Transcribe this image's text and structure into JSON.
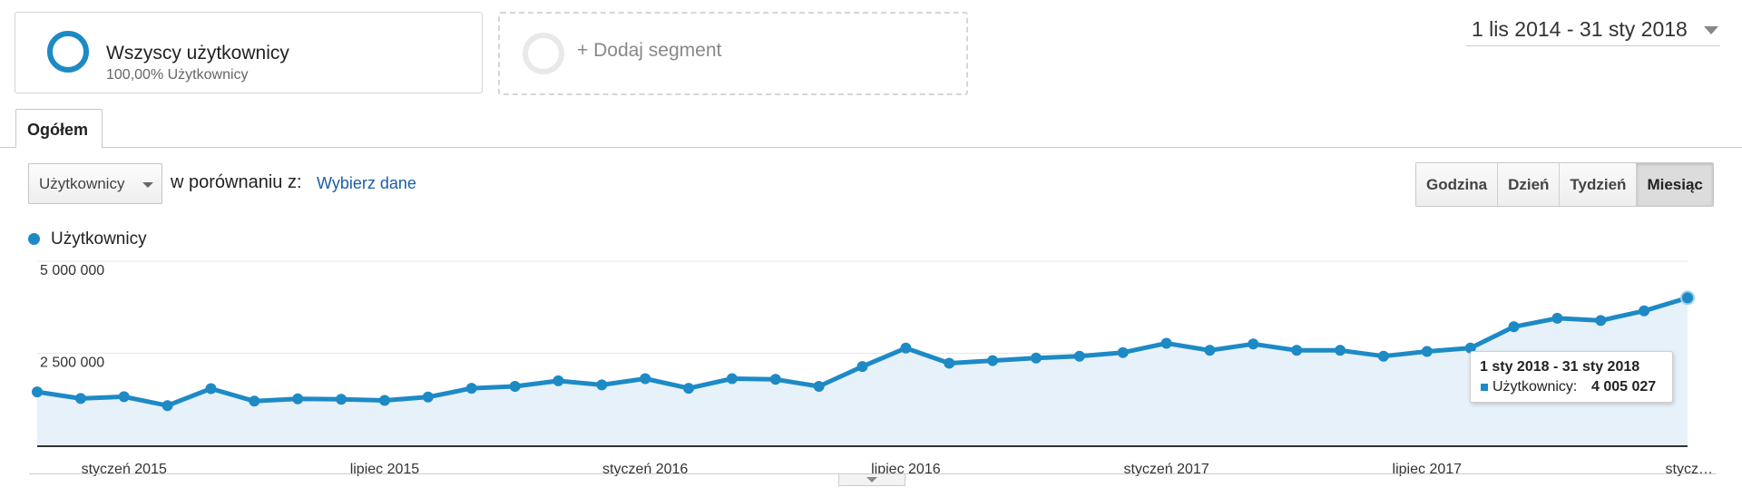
{
  "segments": {
    "active": {
      "name": "Wszyscy użytkownicy",
      "subtitle": "100,00% Użytkownicy"
    },
    "add_label": "+ Dodaj segment"
  },
  "date_range": "1 lis 2014 - 31 sty 2018",
  "tabs": [
    {
      "label": "Ogółem"
    }
  ],
  "controls": {
    "metric_select": "Użytkownicy",
    "compare_text": "w porównaniu z:",
    "compare_link": "Wybierz dane",
    "granularity": [
      {
        "label": "Godzina",
        "active": false
      },
      {
        "label": "Dzień",
        "active": false
      },
      {
        "label": "Tydzień",
        "active": false
      },
      {
        "label": "Miesiąc",
        "active": true
      }
    ]
  },
  "colors": {
    "series": "#1d8ac6",
    "area": "#e6f1f9",
    "ring_empty": "#e9e9e9",
    "link": "#1a5ea8"
  },
  "chart_data": {
    "type": "area",
    "legend": "Użytkownicy",
    "series": [
      {
        "name": "Użytkownicy",
        "values": [
          1450000,
          1270000,
          1320000,
          1080000,
          1540000,
          1200000,
          1260000,
          1250000,
          1220000,
          1310000,
          1550000,
          1600000,
          1750000,
          1640000,
          1810000,
          1550000,
          1810000,
          1790000,
          1600000,
          2140000,
          2640000,
          2230000,
          2300000,
          2370000,
          2420000,
          2520000,
          2770000,
          2580000,
          2750000,
          2580000,
          2580000,
          2420000,
          2550000,
          2640000,
          3220000,
          3450000,
          3390000,
          3650000,
          4005027
        ]
      }
    ],
    "y_ticks": [
      "5 000 000",
      "2 500 000"
    ],
    "y_tick_values": [
      5000000,
      2500000
    ],
    "ylim": [
      0,
      5000000
    ],
    "x_labels": [
      {
        "index": 2,
        "label": "styczeń 2015"
      },
      {
        "index": 8,
        "label": "lipiec 2015"
      },
      {
        "index": 14,
        "label": "styczeń 2016"
      },
      {
        "index": 20,
        "label": "lipiec 2016"
      },
      {
        "index": 26,
        "label": "styczeń 2017"
      },
      {
        "index": 32,
        "label": "lipiec 2017"
      },
      {
        "index": 38,
        "label": "stycz…"
      }
    ],
    "grid": true,
    "tooltip": {
      "title": "1 sty 2018 - 31 sty 2018",
      "series": "Użytkownicy:",
      "value": "4 005 027"
    }
  }
}
